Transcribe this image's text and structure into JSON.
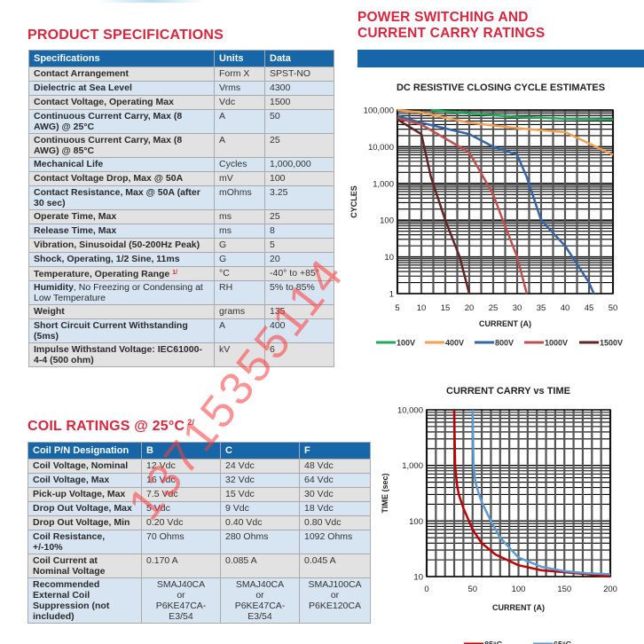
{
  "product_specifications": {
    "title": "PRODUCT SPECIFICATIONS",
    "headers": [
      "Specifications",
      "Units",
      "Data"
    ],
    "rows": [
      {
        "label": "Contact Arrangement",
        "units": "Form X",
        "data": "SPST-NO"
      },
      {
        "label": "Dielectric at Sea Level",
        "units": "Vrms",
        "data": "4300"
      },
      {
        "label": "Contact Voltage, Operating Max",
        "units": "Vdc",
        "data": "1500"
      },
      {
        "label": "Continuous Current Carry, Max (8 AWG) @ 25°C",
        "units": "A",
        "data": "50"
      },
      {
        "label": "Continuous Current Carry, Max (8 AWG) @ 85°C",
        "units": "A",
        "data": "25"
      },
      {
        "label": "Mechanical Life",
        "units": "Cycles",
        "data": "1,000,000"
      },
      {
        "label": "Contact Voltage Drop, Max @ 50A",
        "units": "mV",
        "data": "100"
      },
      {
        "label": "Contact Resistance, Max @ 50A (after 30 sec)",
        "units": "mOhms",
        "data": "3.25"
      },
      {
        "label": "Operate Time, Max",
        "units": "ms",
        "data": "25"
      },
      {
        "label": "Release Time, Max",
        "units": "ms",
        "data": "8"
      },
      {
        "label": "Vibration, Sinusoidal  (50-200Hz Peak)",
        "units": "G",
        "data": "5"
      },
      {
        "label": "Shock, Operating, 1/2 Sine, 11ms",
        "units": "G",
        "data": "20"
      },
      {
        "label": "Temperature, Operating Range",
        "footnote": "1/",
        "units": "°C",
        "data": "-40° to +85°"
      },
      {
        "label": "Humidity",
        "label_suffix": ", No Freezing or Condensing at Low Temperature",
        "units": "RH",
        "data": "5% to 85%"
      },
      {
        "label": "Weight",
        "units": "grams",
        "data": "135"
      },
      {
        "label": "Short Circuit Current Withstanding (5ms)",
        "units": "A",
        "data": "400"
      },
      {
        "label": "Impulse Withstand Voltage: IEC61000-4-4 (500 ohm)",
        "units": "kV",
        "data": "6"
      }
    ]
  },
  "coil_ratings": {
    "title": "COIL RATINGS @ 25°C",
    "title_footnote": "2/",
    "headers": [
      "Coil P/N Designation",
      "B",
      "C",
      "F"
    ],
    "rows": [
      {
        "label": "Coil Voltage, Nominal",
        "b": "12 Vdc",
        "c": "24 Vdc",
        "f": "48 Vdc"
      },
      {
        "label": "Coil Voltage, Max",
        "b": "16 Vdc",
        "c": "32 Vdc",
        "f": "64 Vdc"
      },
      {
        "label": "Pick-up Voltage, Max",
        "b": "7.5 Vdc",
        "c": "15 Vdc",
        "f": "30 Vdc"
      },
      {
        "label": "Drop Out Voltage, Max",
        "b": "5 Vdc",
        "c": "9 Vdc",
        "f": "18 Vdc"
      },
      {
        "label": "Drop Out Voltage, Min",
        "b": "0.20 Vdc",
        "c": "0.40 Vdc",
        "f": "0.80 Vdc"
      },
      {
        "label": "Coil Resistance, +/-10%",
        "b": "70 Ohms",
        "c": "280 Ohms",
        "f": "1092 Ohms"
      },
      {
        "label": "Coil Current at Nominal Voltage",
        "b": "0.170 A",
        "c": "0.085 A",
        "f": "0.045 A"
      },
      {
        "label": "Recommended External Coil Suppression (not included)",
        "b": {
          "line1": "SMAJ40CA",
          "line2": "or",
          "line3": "P6KE47CA-E3/54"
        },
        "c": {
          "line1": "SMAJ40CA",
          "line2": "or",
          "line3": "P6KE47CA-E3/54"
        },
        "f": {
          "line1": "SMAJ100CA",
          "line2": "or",
          "line3": "P6KE120CA"
        }
      }
    ]
  },
  "power_switching": {
    "title_line1": "POWER SWITCHING AND",
    "title_line2": "CURRENT CARRY RATINGS"
  },
  "watermark": {
    "text": "13715355114",
    "color": "#ff3b3b"
  },
  "colors": {
    "accent_red": "#d7263d",
    "header_blue": "#1767a8"
  },
  "chart_data": [
    {
      "type": "line",
      "title": "DC RESISTIVE CLOSING CYCLE ESTIMATES",
      "xlabel": "CURRENT (A)",
      "ylabel": "CYCLES",
      "xlim": [
        5,
        50
      ],
      "ylim": [
        1,
        100000
      ],
      "yscale": "log",
      "xticks": [
        "5",
        "10",
        "15",
        "20",
        "25",
        "30",
        "35",
        "40",
        "45",
        "50"
      ],
      "yticks": [
        "1",
        "10",
        "100",
        "1,000",
        "10,000",
        "100,000"
      ],
      "grid": true,
      "legend_position": "bottom",
      "series": [
        {
          "name": "100V",
          "color": "#1faa59",
          "x": [
            12,
            20,
            30,
            40,
            50
          ],
          "y": [
            100000,
            80000,
            65000,
            58000,
            55000
          ]
        },
        {
          "name": "400V",
          "color": "#f0a050",
          "x": [
            5,
            10,
            20,
            30,
            40,
            50
          ],
          "y": [
            100000,
            85000,
            45000,
            32000,
            25000,
            6000
          ]
        },
        {
          "name": "800V",
          "color": "#3465a4",
          "x": [
            5,
            10,
            20,
            25,
            30,
            32,
            35,
            40,
            45,
            46
          ],
          "y": [
            70000,
            45000,
            22000,
            10000,
            6000,
            1500,
            100,
            20,
            2,
            1
          ]
        },
        {
          "name": "1000V",
          "color": "#c0504d",
          "x": [
            5,
            10,
            20,
            25,
            27,
            30,
            32
          ],
          "y": [
            60000,
            40000,
            7000,
            500,
            100,
            10,
            1
          ]
        },
        {
          "name": "1500V",
          "color": "#632523",
          "x": [
            5,
            10,
            12,
            15,
            18,
            20
          ],
          "y": [
            55000,
            22000,
            1500,
            100,
            10,
            1
          ]
        }
      ]
    },
    {
      "type": "line",
      "title": "CURRENT CARRY vs TIME",
      "xlabel": "CURRENT (A)",
      "ylabel": "TIME (sec)",
      "xlim": [
        0,
        200
      ],
      "ylim": [
        10,
        10000
      ],
      "yscale": "log",
      "xticks": [
        "0",
        "50",
        "100",
        "150",
        "200"
      ],
      "yticks": [
        "10",
        "100",
        "1,000",
        "10,000"
      ],
      "grid": true,
      "legend_position": "bottom",
      "series": [
        {
          "name": "85°C",
          "color": "#c00000",
          "x": [
            30,
            31,
            33,
            35,
            40,
            50,
            60,
            75,
            100,
            125,
            150,
            175,
            200
          ],
          "y": [
            10000,
            1000,
            450,
            300,
            170,
            70,
            40,
            25,
            16,
            13,
            12,
            11,
            10
          ]
        },
        {
          "name": "65°C",
          "color": "#5b9bd5",
          "x": [
            50,
            51,
            53,
            57,
            60,
            70,
            80,
            100,
            125,
            150,
            175,
            200
          ],
          "y": [
            10000,
            1000,
            500,
            300,
            220,
            100,
            50,
            22,
            15,
            12.5,
            11.5,
            11
          ]
        }
      ]
    }
  ]
}
